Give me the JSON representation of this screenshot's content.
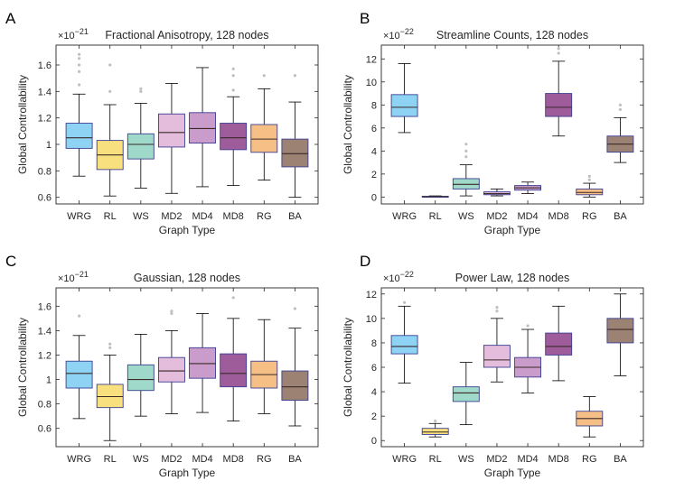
{
  "figure": {
    "background": "#ffffff"
  },
  "chart_data": [
    {
      "panel": "A",
      "type": "box",
      "title": "Fractional Anisotropy, 128 nodes",
      "xlabel": "Graph Type",
      "ylabel": "Global Controllability",
      "exponent": "21",
      "ylim": [
        0.55,
        1.75
      ],
      "yticks": [
        0.6,
        0.8,
        1,
        1.2,
        1.4,
        1.6
      ],
      "ytick_labels": [
        "0.6",
        "0.8",
        "1",
        "1.2",
        "1.4",
        "1.6"
      ],
      "categories": [
        "WRG",
        "RL",
        "WS",
        "MD2",
        "MD4",
        "MD8",
        "RG",
        "BA"
      ],
      "boxes": [
        {
          "min": 0.76,
          "q1": 0.97,
          "median": 1.05,
          "q3": 1.16,
          "max": 1.38,
          "outliers": [
            1.45,
            1.55,
            1.6,
            1.65,
            1.68
          ]
        },
        {
          "min": 0.61,
          "q1": 0.81,
          "median": 0.92,
          "q3": 1.03,
          "max": 1.3,
          "outliers": [
            1.4,
            1.6
          ]
        },
        {
          "min": 0.67,
          "q1": 0.89,
          "median": 1.0,
          "q3": 1.08,
          "max": 1.31,
          "outliers": [
            1.4,
            1.42
          ]
        },
        {
          "min": 0.63,
          "q1": 0.98,
          "median": 1.09,
          "q3": 1.23,
          "max": 1.46,
          "outliers": []
        },
        {
          "min": 0.68,
          "q1": 1.01,
          "median": 1.12,
          "q3": 1.24,
          "max": 1.58,
          "outliers": []
        },
        {
          "min": 0.69,
          "q1": 0.96,
          "median": 1.05,
          "q3": 1.16,
          "max": 1.36,
          "outliers": [
            1.41,
            1.52,
            1.57
          ]
        },
        {
          "min": 0.73,
          "q1": 0.94,
          "median": 1.04,
          "q3": 1.15,
          "max": 1.42,
          "outliers": [
            1.52
          ]
        },
        {
          "min": 0.6,
          "q1": 0.83,
          "median": 0.93,
          "q3": 1.04,
          "max": 1.32,
          "outliers": [
            1.52
          ]
        }
      ]
    },
    {
      "panel": "B",
      "type": "box",
      "title": "Streamline Counts, 128 nodes",
      "xlabel": "Graph Type",
      "ylabel": "Global Controllability",
      "exponent": "22",
      "ylim": [
        -0.6,
        13.2
      ],
      "yticks": [
        0,
        2,
        4,
        6,
        8,
        10,
        12
      ],
      "ytick_labels": [
        "0",
        "2",
        "4",
        "6",
        "8",
        "10",
        "12"
      ],
      "categories": [
        "WRG",
        "RL",
        "WS",
        "MD2",
        "MD4",
        "MD8",
        "RG",
        "BA"
      ],
      "boxes": [
        {
          "min": 5.6,
          "q1": 7.0,
          "median": 7.8,
          "q3": 8.9,
          "max": 11.6,
          "outliers": []
        },
        {
          "min": 0.0,
          "q1": 0.02,
          "median": 0.04,
          "q3": 0.06,
          "max": 0.1,
          "outliers": []
        },
        {
          "min": 0.1,
          "q1": 0.7,
          "median": 1.1,
          "q3": 1.6,
          "max": 2.8,
          "outliers": [
            3.5,
            4.0,
            4.6
          ]
        },
        {
          "min": 0.1,
          "q1": 0.2,
          "median": 0.3,
          "q3": 0.45,
          "max": 0.7,
          "outliers": []
        },
        {
          "min": 0.3,
          "q1": 0.6,
          "median": 0.8,
          "q3": 1.0,
          "max": 1.3,
          "outliers": []
        },
        {
          "min": 5.3,
          "q1": 7.0,
          "median": 7.8,
          "q3": 9.0,
          "max": 11.8,
          "outliers": [
            12.5,
            12.9
          ]
        },
        {
          "min": 0.0,
          "q1": 0.2,
          "median": 0.4,
          "q3": 0.7,
          "max": 1.2,
          "outliers": [
            1.5,
            1.8
          ]
        },
        {
          "min": 3.0,
          "q1": 3.9,
          "median": 4.6,
          "q3": 5.3,
          "max": 6.9,
          "outliers": [
            7.6,
            8.0
          ]
        }
      ]
    },
    {
      "panel": "C",
      "type": "box",
      "title": "Gaussian, 128 nodes",
      "xlabel": "Graph Type",
      "ylabel": "Global Controllability",
      "exponent": "21",
      "ylim": [
        0.45,
        1.75
      ],
      "yticks": [
        0.6,
        0.8,
        1,
        1.2,
        1.4,
        1.6
      ],
      "ytick_labels": [
        "0.6",
        "0.8",
        "1",
        "1.2",
        "1.4",
        "1.6"
      ],
      "categories": [
        "WRG",
        "RL",
        "WS",
        "MD2",
        "MD4",
        "MD8",
        "RG",
        "BA"
      ],
      "boxes": [
        {
          "min": 0.68,
          "q1": 0.93,
          "median": 1.05,
          "q3": 1.15,
          "max": 1.36,
          "outliers": [
            1.52
          ]
        },
        {
          "min": 0.5,
          "q1": 0.77,
          "median": 0.86,
          "q3": 0.96,
          "max": 1.2,
          "outliers": [
            1.26,
            1.29
          ]
        },
        {
          "min": 0.7,
          "q1": 0.91,
          "median": 1.0,
          "q3": 1.12,
          "max": 1.37,
          "outliers": []
        },
        {
          "min": 0.72,
          "q1": 0.98,
          "median": 1.07,
          "q3": 1.18,
          "max": 1.4,
          "outliers": [
            1.54,
            1.56
          ]
        },
        {
          "min": 0.73,
          "q1": 1.01,
          "median": 1.13,
          "q3": 1.26,
          "max": 1.54,
          "outliers": []
        },
        {
          "min": 0.66,
          "q1": 0.94,
          "median": 1.05,
          "q3": 1.21,
          "max": 1.5,
          "outliers": [
            1.67
          ]
        },
        {
          "min": 0.72,
          "q1": 0.93,
          "median": 1.04,
          "q3": 1.15,
          "max": 1.49,
          "outliers": []
        },
        {
          "min": 0.62,
          "q1": 0.83,
          "median": 0.94,
          "q3": 1.07,
          "max": 1.42,
          "outliers": [
            1.58
          ]
        }
      ]
    },
    {
      "panel": "D",
      "type": "box",
      "title": "Power Law, 128 nodes",
      "xlabel": "Graph Type",
      "ylabel": "Global Controllability",
      "exponent": "22",
      "ylim": [
        -0.5,
        12.5
      ],
      "yticks": [
        0,
        2,
        4,
        6,
        8,
        10,
        12
      ],
      "ytick_labels": [
        "0",
        "2",
        "4",
        "6",
        "8",
        "10",
        "12"
      ],
      "categories": [
        "WRG",
        "RL",
        "WS",
        "MD2",
        "MD4",
        "MD8",
        "RG",
        "BA"
      ],
      "boxes": [
        {
          "min": 4.7,
          "q1": 7.1,
          "median": 7.7,
          "q3": 8.6,
          "max": 11.0,
          "outliers": [
            11.3
          ]
        },
        {
          "min": 0.3,
          "q1": 0.5,
          "median": 0.7,
          "q3": 1.0,
          "max": 1.4,
          "outliers": [
            1.6
          ]
        },
        {
          "min": 1.3,
          "q1": 3.2,
          "median": 3.9,
          "q3": 4.4,
          "max": 6.4,
          "outliers": []
        },
        {
          "min": 4.8,
          "q1": 6.0,
          "median": 6.6,
          "q3": 7.8,
          "max": 10.0,
          "outliers": [
            10.6,
            10.9
          ]
        },
        {
          "min": 3.9,
          "q1": 5.2,
          "median": 6.0,
          "q3": 6.8,
          "max": 9.1,
          "outliers": [
            9.4
          ]
        },
        {
          "min": 4.9,
          "q1": 7.0,
          "median": 7.7,
          "q3": 8.8,
          "max": 11.0,
          "outliers": []
        },
        {
          "min": 0.3,
          "q1": 1.2,
          "median": 1.8,
          "q3": 2.4,
          "max": 3.6,
          "outliers": []
        },
        {
          "min": 5.3,
          "q1": 8.0,
          "median": 9.1,
          "q3": 10.0,
          "max": 12.0,
          "outliers": []
        }
      ]
    }
  ],
  "colors": {
    "fills": [
      "#8fd3f4",
      "#f9e07f",
      "#9fd9c9",
      "#e4bcdc",
      "#c99ccc",
      "#9e5c9b",
      "#f5bf85",
      "#9b8272"
    ],
    "edge": "#3c3f92",
    "whisker": "#000000",
    "median": "#3a2a28",
    "outlier": "#c0c0c0",
    "axis": "#262626"
  }
}
